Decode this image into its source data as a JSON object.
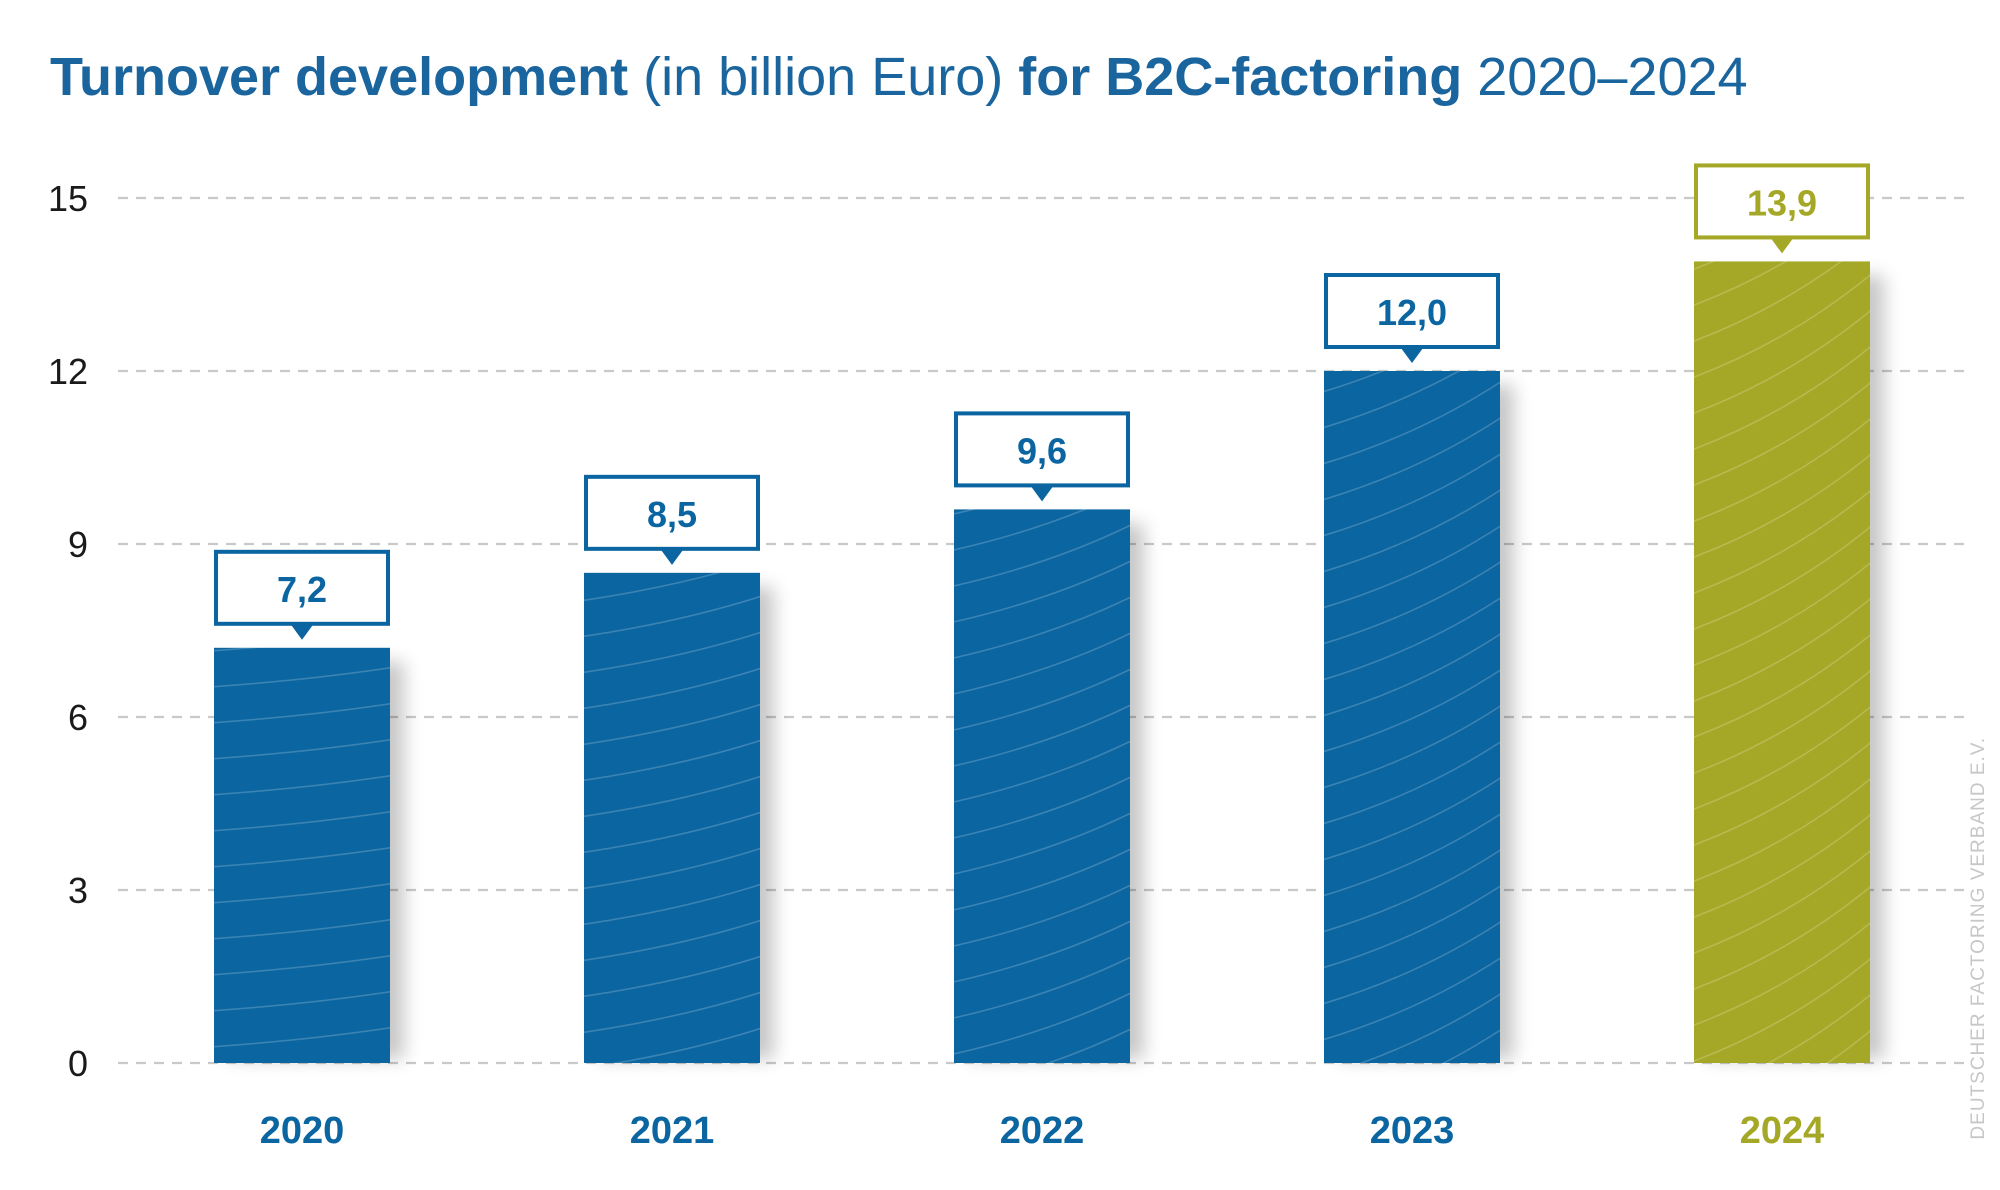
{
  "title": {
    "part1": "Turnover development",
    "part2": " (in billion Euro) ",
    "part3": "for B2C-factoring",
    "part4": " 2020–2024"
  },
  "credit": "DEUTSCHER FACTORING VERBAND E.V.",
  "colors": {
    "blue": "#0a65a1",
    "olive": "#a5a826",
    "grid": "#c9c9c9",
    "tick_text": "#1a1a1a",
    "credit_text": "#c7c7c7"
  },
  "chart_data": {
    "type": "bar",
    "categories": [
      "2020",
      "2021",
      "2022",
      "2023",
      "2024"
    ],
    "values": [
      7.2,
      8.5,
      9.6,
      12.0,
      13.9
    ],
    "value_labels": [
      "7,2",
      "8,5",
      "9,6",
      "12,0",
      "13,9"
    ],
    "highlight_index": 4,
    "yticks": [
      "0",
      "3",
      "6",
      "9",
      "12",
      "15"
    ],
    "ylim": [
      0,
      15
    ],
    "grid": true,
    "legend": false
  }
}
